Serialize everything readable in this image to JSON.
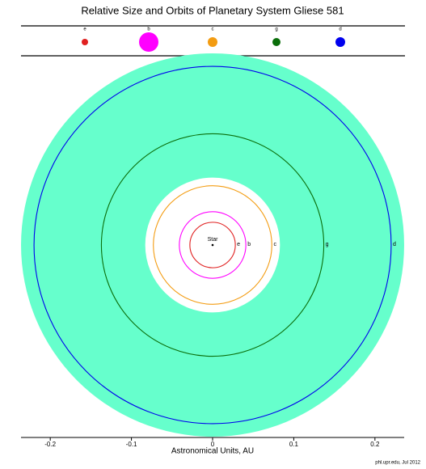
{
  "chart_data": {
    "type": "orbits",
    "title": "Relative Size and Orbits of Planetary System Gliese 581",
    "xlabel": "Astronomical Units, AU",
    "credit": "phl.upr.edu, Jul 2012",
    "star_label": "Star",
    "xlim": [
      -0.24,
      0.24
    ],
    "xticks": [
      -0.2,
      -0.1,
      0,
      0.1,
      0.2
    ],
    "habitable_zone": [
      0.083,
      0.236
    ],
    "habitable_zone_color": "#66ffcc",
    "planets": [
      {
        "name": "e",
        "color": "#e02020",
        "orbit": 0.028,
        "size": 4
      },
      {
        "name": "b",
        "color": "#ff00ff",
        "orbit": 0.041,
        "size": 12
      },
      {
        "name": "c",
        "color": "#f39c12",
        "orbit": 0.073,
        "size": 6
      },
      {
        "name": "g",
        "color": "#0a6e0a",
        "orbit": 0.137,
        "size": 5
      },
      {
        "name": "d",
        "color": "#0000ee",
        "orbit": 0.22,
        "size": 6
      }
    ]
  }
}
